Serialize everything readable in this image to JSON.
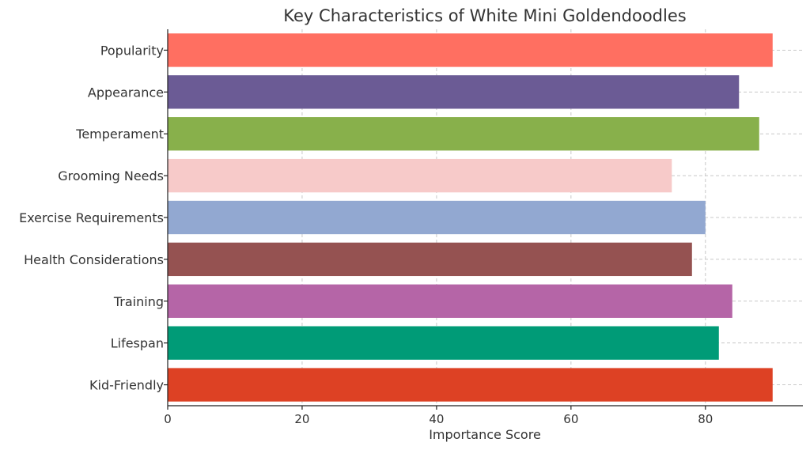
{
  "chart_data": {
    "type": "bar",
    "orientation": "horizontal",
    "title": "Key Characteristics of White Mini Goldendoodles",
    "xlabel": "Importance Score",
    "ylabel": "",
    "categories": [
      "Popularity",
      "Appearance",
      "Temperament",
      "Grooming Needs",
      "Exercise Requirements",
      "Health Considerations",
      "Training",
      "Lifespan",
      "Kid-Friendly"
    ],
    "values": [
      90,
      85,
      88,
      75,
      80,
      78,
      84,
      82,
      90
    ],
    "colors": [
      "#ff6f61",
      "#6b5b95",
      "#88b04b",
      "#f7cac9",
      "#92a8d1",
      "#955251",
      "#b565a7",
      "#009b77",
      "#dd4124"
    ],
    "xlim": [
      0,
      94.5
    ],
    "xticks": [
      0,
      20,
      40,
      60,
      80
    ],
    "grid": true
  }
}
